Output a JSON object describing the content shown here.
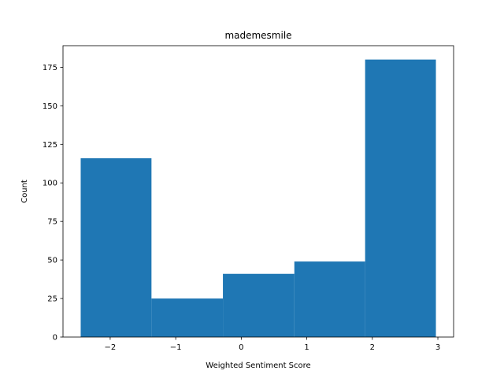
{
  "chart_data": {
    "type": "bar",
    "subtype": "histogram",
    "title": "mademesmile",
    "xlabel": "Weighted Sentiment Score",
    "ylabel": "Count",
    "bins": [
      {
        "x0": -2.45,
        "x1": -1.37,
        "count": 116
      },
      {
        "x0": -1.37,
        "x1": -0.28,
        "count": 25
      },
      {
        "x0": -0.28,
        "x1": 0.81,
        "count": 41
      },
      {
        "x0": 0.81,
        "x1": 1.89,
        "count": 49
      },
      {
        "x0": 1.89,
        "x1": 2.97,
        "count": 180
      }
    ],
    "xlim": [
      -2.72,
      3.24
    ],
    "ylim": [
      0,
      189
    ],
    "xticks": [
      -2,
      -1,
      0,
      1,
      2,
      3
    ],
    "xtick_labels": [
      "−2",
      "−1",
      "0",
      "1",
      "2",
      "3"
    ],
    "yticks": [
      0,
      25,
      50,
      75,
      100,
      125,
      150,
      175
    ],
    "yticks_labels": [
      "0",
      "25",
      "50",
      "75",
      "100",
      "125",
      "150",
      "175"
    ],
    "bar_color": "#1f77b4",
    "grid": false,
    "legend": "none"
  }
}
